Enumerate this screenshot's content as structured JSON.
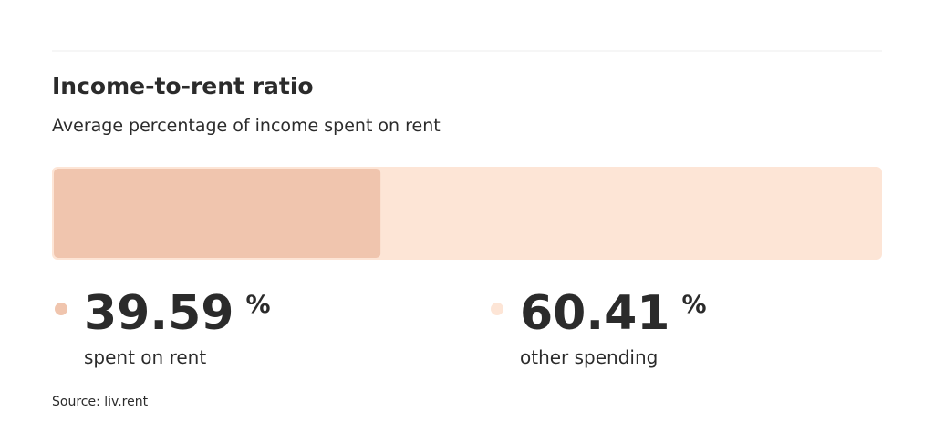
{
  "chart_data": {
    "type": "stacked-bar-100",
    "title": "Income-to-rent ratio",
    "subtitle": "Average percentage of income spent on rent",
    "unit": "%",
    "xlim": [
      0,
      100
    ],
    "series": [
      {
        "name": "spent on rent",
        "color": "#f0c5ae",
        "values": [
          39.59
        ]
      },
      {
        "name": "other spending",
        "color": "#fde5d6",
        "values": [
          60.41
        ]
      }
    ],
    "source": "Source: liv.rent"
  }
}
